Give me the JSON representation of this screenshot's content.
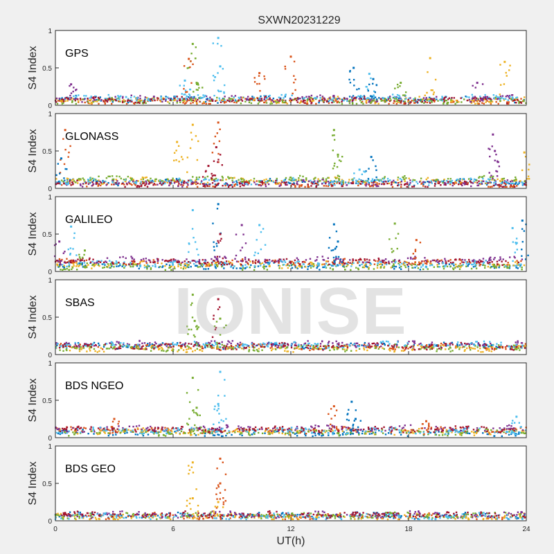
{
  "figure_title": "SXWN20231229",
  "watermark_text": "IONISE",
  "colors": [
    "#0072BD",
    "#D95319",
    "#EDB120",
    "#7E2F8E",
    "#77AC30",
    "#4DBEEE",
    "#A2142F"
  ],
  "chart_data": [
    {
      "type": "scatter",
      "panel_label": "GPS",
      "ylabel": "S4 Index",
      "xlabel": "",
      "xlim": [
        0,
        24
      ],
      "ylim": [
        0,
        1
      ],
      "yticks": [
        0,
        0.5,
        1
      ],
      "ytick_labels": [
        "0",
        "0.5",
        "1"
      ],
      "xticks": [
        0,
        6,
        12,
        18,
        24
      ],
      "xtick_labels": [
        "",
        "",
        "",
        "",
        ""
      ],
      "baseline": [
        0.08,
        0.05,
        0.07,
        0.09,
        0.06,
        0.1,
        0.07
      ],
      "spikes": [
        {
          "x": 7.0,
          "y": 0.82,
          "s": 4
        },
        {
          "x": 7.2,
          "y": 0.3,
          "s": 4
        },
        {
          "x": 8.3,
          "y": 0.9,
          "s": 5
        },
        {
          "x": 8.4,
          "y": 0.52,
          "s": 5
        },
        {
          "x": 6.8,
          "y": 0.62,
          "s": 1
        },
        {
          "x": 10.4,
          "y": 0.43,
          "s": 1
        },
        {
          "x": 12.0,
          "y": 0.65,
          "s": 1
        },
        {
          "x": 15.2,
          "y": 0.5,
          "s": 0
        },
        {
          "x": 16.0,
          "y": 0.42,
          "s": 5
        },
        {
          "x": 16.2,
          "y": 0.35,
          "s": 0
        },
        {
          "x": 19.1,
          "y": 0.63,
          "s": 2
        },
        {
          "x": 22.9,
          "y": 0.58,
          "s": 2
        },
        {
          "x": 0.8,
          "y": 0.28,
          "s": 3
        },
        {
          "x": 6.6,
          "y": 0.33,
          "s": 5
        },
        {
          "x": 21.5,
          "y": 0.3,
          "s": 3
        },
        {
          "x": 17.6,
          "y": 0.3,
          "s": 4
        }
      ]
    },
    {
      "type": "scatter",
      "panel_label": "GLONASS",
      "ylabel": "S4 Index",
      "xlabel": "",
      "xlim": [
        0,
        24
      ],
      "ylim": [
        0,
        1
      ],
      "yticks": [
        0,
        0.5,
        1
      ],
      "ytick_labels": [
        "0",
        "0.5",
        "1"
      ],
      "xticks": [
        0,
        6,
        12,
        18,
        24
      ],
      "xtick_labels": [
        "",
        "",
        "",
        "",
        ""
      ],
      "baseline": [
        0.08,
        0.05,
        0.1,
        0.07,
        0.12,
        0.09,
        0.06
      ],
      "spikes": [
        {
          "x": 0.5,
          "y": 0.78,
          "s": 1
        },
        {
          "x": 0.3,
          "y": 0.4,
          "s": 0
        },
        {
          "x": 6.2,
          "y": 0.62,
          "s": 2
        },
        {
          "x": 7.0,
          "y": 0.85,
          "s": 2
        },
        {
          "x": 8.3,
          "y": 0.88,
          "s": 1
        },
        {
          "x": 8.2,
          "y": 0.55,
          "s": 6
        },
        {
          "x": 14.2,
          "y": 0.78,
          "s": 4
        },
        {
          "x": 14.4,
          "y": 0.45,
          "s": 4
        },
        {
          "x": 16.1,
          "y": 0.42,
          "s": 0
        },
        {
          "x": 22.3,
          "y": 0.72,
          "s": 3
        },
        {
          "x": 22.4,
          "y": 0.5,
          "s": 3
        },
        {
          "x": 23.9,
          "y": 0.48,
          "s": 2
        },
        {
          "x": 7.8,
          "y": 0.3,
          "s": 6
        },
        {
          "x": 15.5,
          "y": 0.25,
          "s": 5
        }
      ]
    },
    {
      "type": "scatter",
      "panel_label": "GALILEO",
      "ylabel": "S4 Index",
      "xlabel": "",
      "xlim": [
        0,
        24
      ],
      "ylim": [
        0,
        1
      ],
      "yticks": [
        0,
        0.5,
        1
      ],
      "ytick_labels": [
        "0",
        "0.5",
        "1"
      ],
      "xticks": [
        0,
        6,
        12,
        18,
        24
      ],
      "xtick_labels": [
        "",
        "",
        "",
        "",
        ""
      ],
      "baseline": [
        0.07,
        0.12,
        0.09,
        0.15,
        0.06,
        0.1,
        0.13
      ],
      "spikes": [
        {
          "x": 7.0,
          "y": 0.82,
          "s": 5
        },
        {
          "x": 8.3,
          "y": 0.9,
          "s": 0
        },
        {
          "x": 8.4,
          "y": 0.5,
          "s": 6
        },
        {
          "x": 9.5,
          "y": 0.62,
          "s": 3
        },
        {
          "x": 10.4,
          "y": 0.62,
          "s": 5
        },
        {
          "x": 14.2,
          "y": 0.63,
          "s": 0
        },
        {
          "x": 14.4,
          "y": 0.4,
          "s": 0
        },
        {
          "x": 17.3,
          "y": 0.64,
          "s": 4
        },
        {
          "x": 18.4,
          "y": 0.42,
          "s": 1
        },
        {
          "x": 23.3,
          "y": 0.58,
          "s": 5
        },
        {
          "x": 23.8,
          "y": 0.68,
          "s": 0
        },
        {
          "x": 0.2,
          "y": 0.4,
          "s": 3
        },
        {
          "x": 0.8,
          "y": 0.6,
          "s": 5
        },
        {
          "x": 1.5,
          "y": 0.28,
          "s": 4
        }
      ]
    },
    {
      "type": "scatter",
      "panel_label": "SBAS",
      "ylabel": "S4 Index",
      "xlabel": "",
      "xlim": [
        0,
        24
      ],
      "ylim": [
        0,
        1
      ],
      "yticks": [
        0,
        0.5,
        1
      ],
      "ytick_labels": [
        "0",
        "0.5",
        "1"
      ],
      "xticks": [
        0,
        6,
        12,
        18,
        24
      ],
      "xtick_labels": [
        "",
        "",
        "",
        "",
        ""
      ],
      "baseline": [
        0.12,
        0.1,
        0.08,
        0.14,
        0.09,
        0.13,
        0.11
      ],
      "spikes": [
        {
          "x": 7.0,
          "y": 0.8,
          "s": 4
        },
        {
          "x": 7.1,
          "y": 0.45,
          "s": 4
        },
        {
          "x": 8.3,
          "y": 0.74,
          "s": 6
        },
        {
          "x": 8.4,
          "y": 0.48,
          "s": 4
        }
      ]
    },
    {
      "type": "scatter",
      "panel_label": "BDS NGEO",
      "ylabel": "S4 Index",
      "xlabel": "",
      "xlim": [
        0,
        24
      ],
      "ylim": [
        0,
        1
      ],
      "yticks": [
        0,
        0.5,
        1
      ],
      "ytick_labels": [
        "0",
        "0.5",
        "1"
      ],
      "xticks": [
        0,
        6,
        12,
        18,
        24
      ],
      "xtick_labels": [
        "",
        "",
        "",
        "",
        ""
      ],
      "baseline": [
        0.06,
        0.1,
        0.08,
        0.12,
        0.07,
        0.09,
        0.11
      ],
      "spikes": [
        {
          "x": 7.0,
          "y": 0.8,
          "s": 4
        },
        {
          "x": 7.2,
          "y": 0.4,
          "s": 4
        },
        {
          "x": 8.4,
          "y": 0.88,
          "s": 5
        },
        {
          "x": 8.3,
          "y": 0.45,
          "s": 5
        },
        {
          "x": 14.2,
          "y": 0.42,
          "s": 1
        },
        {
          "x": 15.1,
          "y": 0.48,
          "s": 0
        },
        {
          "x": 15.3,
          "y": 0.25,
          "s": 0
        },
        {
          "x": 3.0,
          "y": 0.25,
          "s": 1
        },
        {
          "x": 23.5,
          "y": 0.28,
          "s": 5
        },
        {
          "x": 18.9,
          "y": 0.22,
          "s": 1
        }
      ]
    },
    {
      "type": "scatter",
      "panel_label": "BDS GEO",
      "ylabel": "S4 Index",
      "xlabel": "UT(h)",
      "xlim": [
        0,
        24
      ],
      "ylim": [
        0,
        1
      ],
      "yticks": [
        0,
        0.5,
        1
      ],
      "ytick_labels": [
        "0",
        "0.5",
        "1"
      ],
      "xticks": [
        0,
        6,
        12,
        18,
        24
      ],
      "xtick_labels": [
        "0",
        "6",
        "12",
        "18",
        "24"
      ],
      "baseline": [
        0.07,
        0.06,
        0.05,
        0.08,
        0.07,
        0.06,
        0.08
      ],
      "spikes": [
        {
          "x": 7.0,
          "y": 0.78,
          "s": 2
        },
        {
          "x": 7.0,
          "y": 0.3,
          "s": 2
        },
        {
          "x": 8.4,
          "y": 0.83,
          "s": 1
        },
        {
          "x": 8.4,
          "y": 0.5,
          "s": 1
        },
        {
          "x": 8.3,
          "y": 0.25,
          "s": 2
        }
      ]
    }
  ]
}
